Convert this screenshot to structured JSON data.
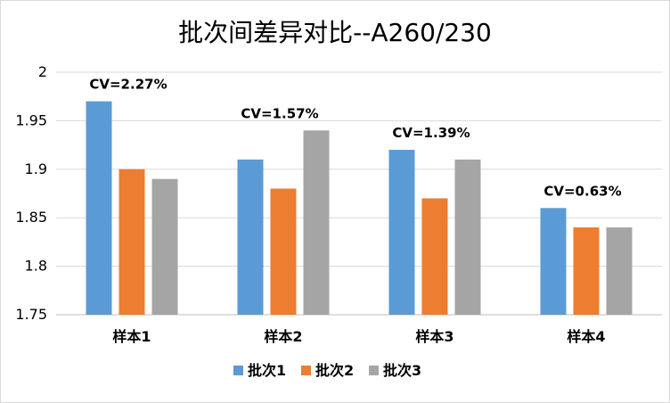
{
  "chart_data": {
    "type": "bar",
    "title": "批次间差异对比--A260/230",
    "categories": [
      "样本1",
      "样本2",
      "样本3",
      "样本4"
    ],
    "series": [
      {
        "name": "批次1",
        "color": "#5b9bd5",
        "values": [
          1.97,
          1.91,
          1.92,
          1.86
        ]
      },
      {
        "name": "批次2",
        "color": "#ed7d31",
        "values": [
          1.9,
          1.88,
          1.87,
          1.84
        ]
      },
      {
        "name": "批次3",
        "color": "#a5a5a5",
        "values": [
          1.89,
          1.94,
          1.91,
          1.84
        ]
      }
    ],
    "annotations": [
      "CV=2.27%",
      "CV=1.57%",
      "CV=1.39%",
      "CV=0.63%"
    ],
    "ylim": [
      1.75,
      2.0
    ],
    "yticks": [
      "1.75",
      "1.8",
      "1.85",
      "1.9",
      "1.95",
      "2"
    ],
    "grid": true,
    "legend": "bottom",
    "xlabel": "",
    "ylabel": ""
  }
}
